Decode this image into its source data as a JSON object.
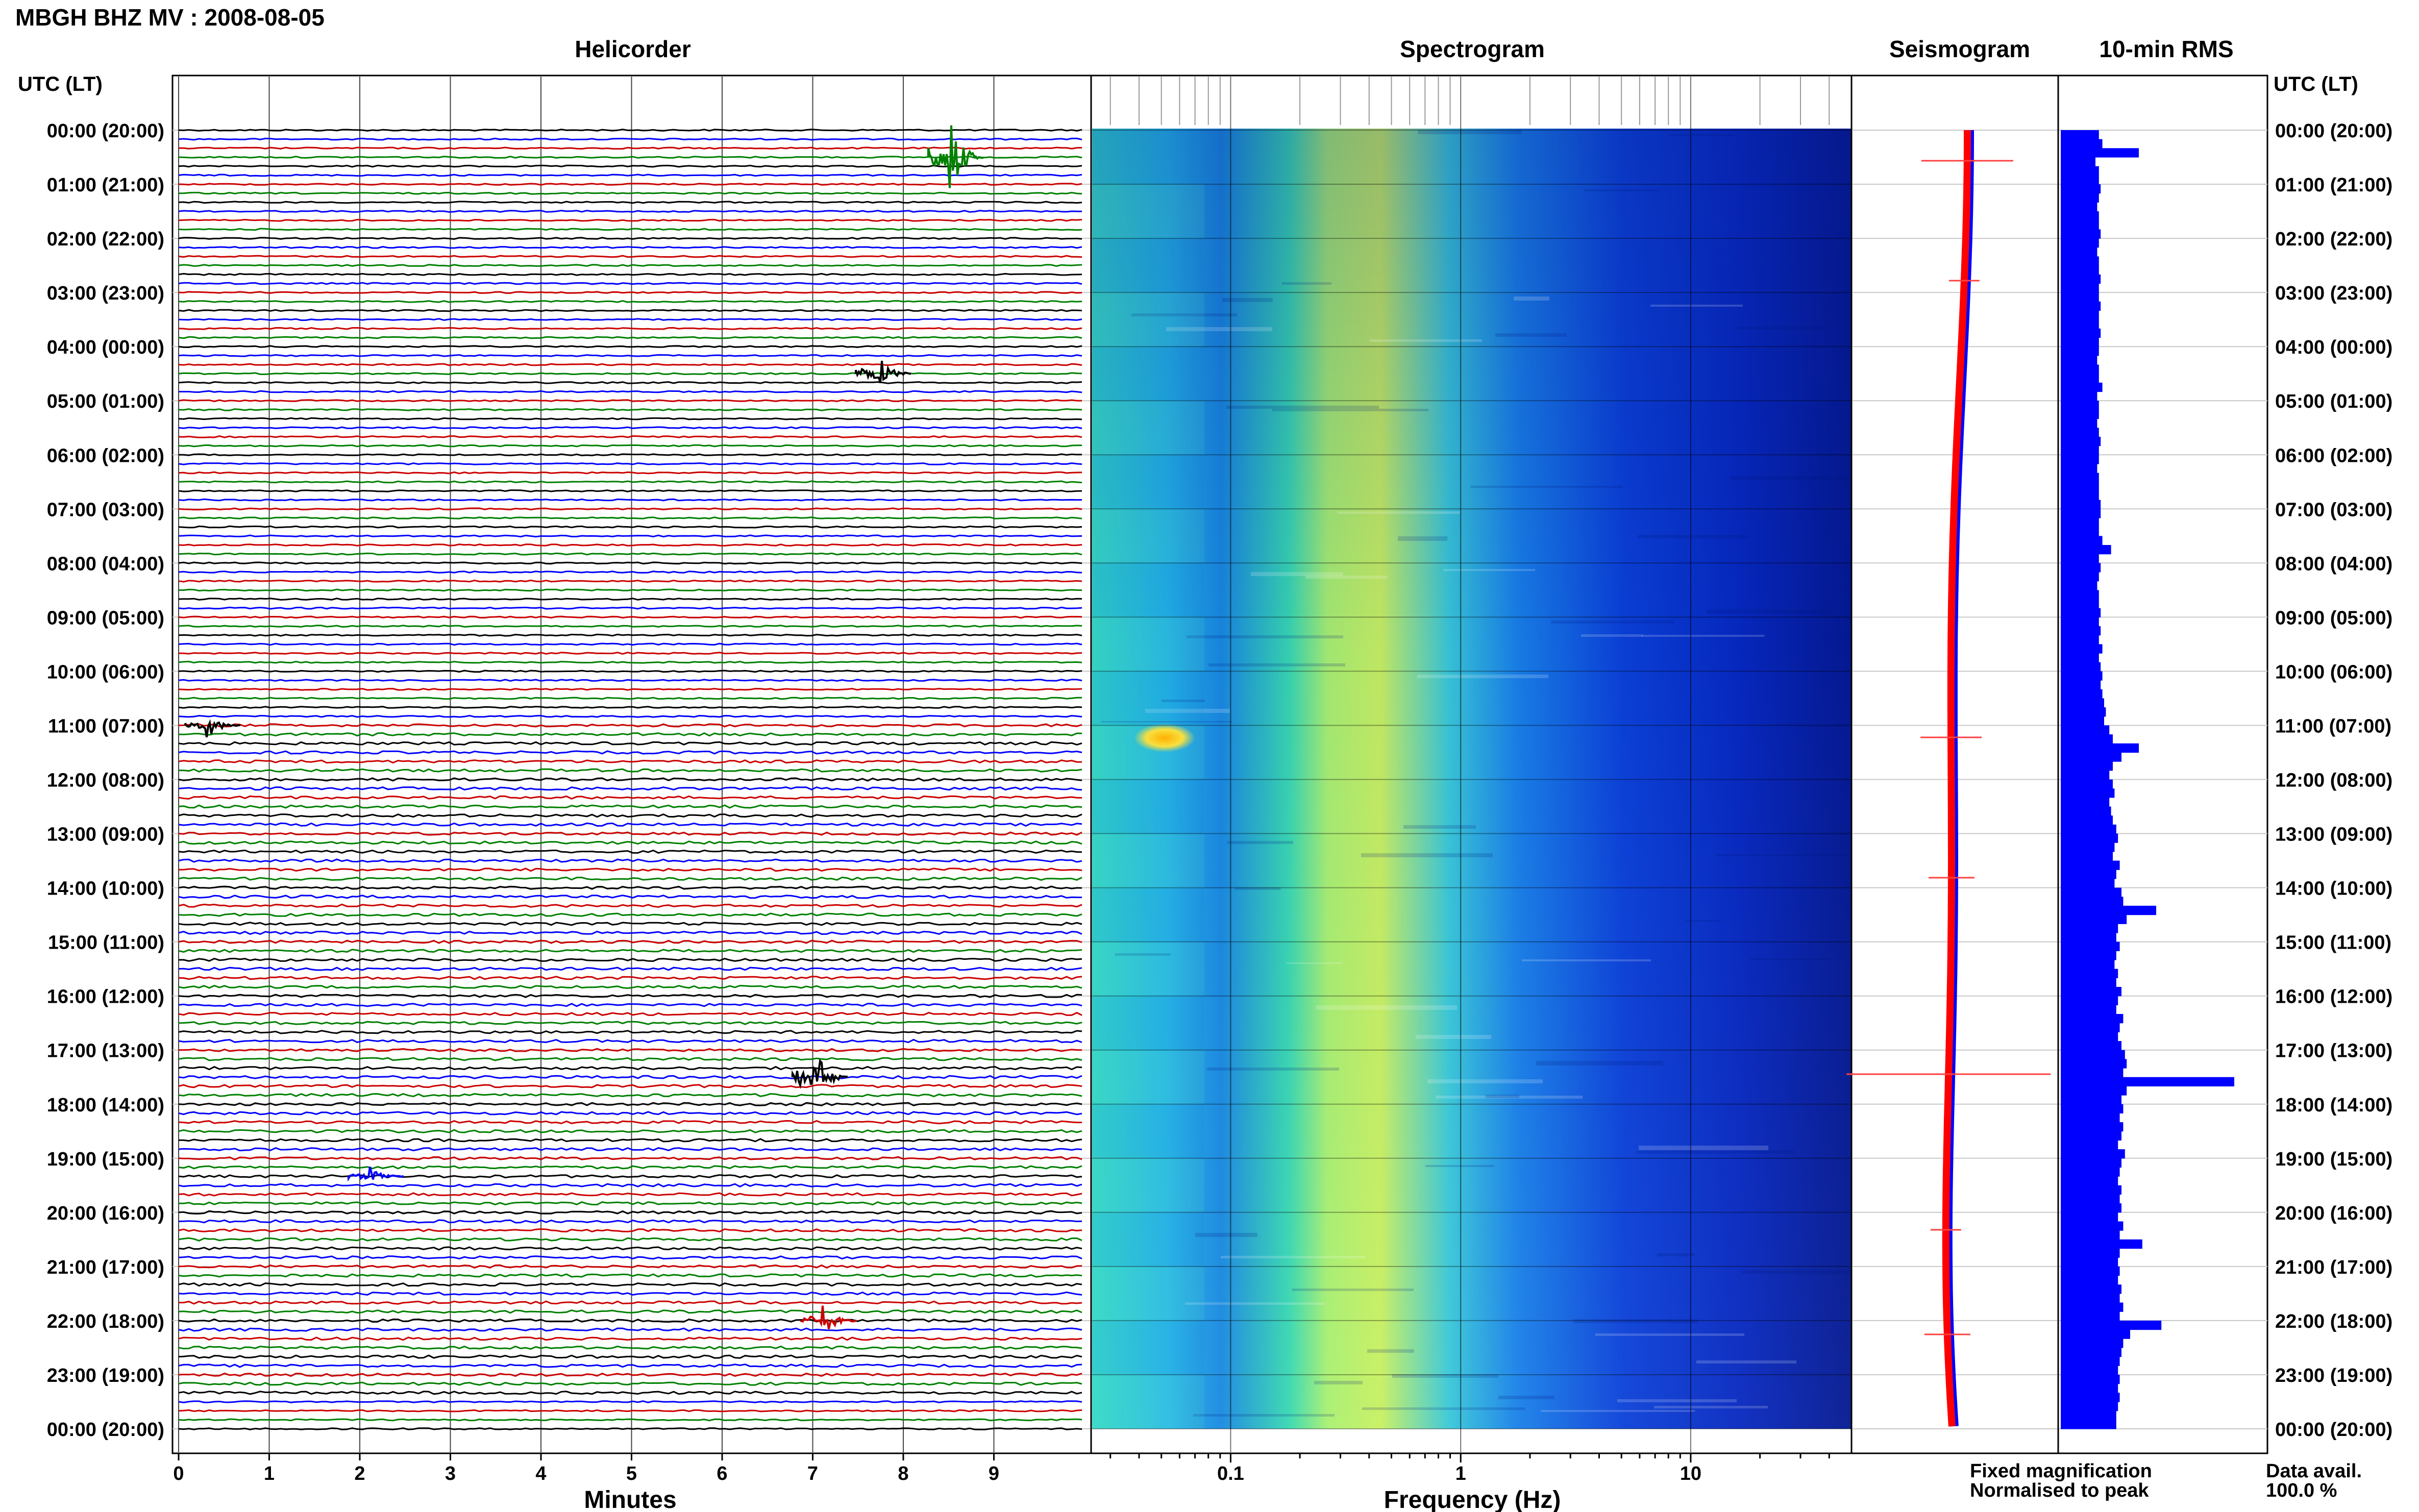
{
  "header": {
    "title": "MBGH BHZ MV : 2008-08-05",
    "left_axis_title": "UTC (LT)",
    "right_axis_title": "UTC (LT)"
  },
  "panels": {
    "helicorder_title": "Helicorder",
    "spectrogram_title": "Spectrogram",
    "seismogram_title": "Seismogram",
    "rms_title": "10-min RMS"
  },
  "legend": {
    "fixed_label": "Fixed magnification",
    "normalised_label": "Normalised to peak",
    "fixed_color": "#0000ff",
    "normalised_color": "#ff0000"
  },
  "availability": {
    "label": "Data avail.",
    "value": "100.0 %"
  },
  "chart_data": [
    {
      "type": "line",
      "name": "helicorder",
      "title": "Helicorder",
      "xlabel": "Minutes",
      "xlim": [
        0,
        10
      ],
      "x_ticks": [
        "0",
        "1",
        "2",
        "3",
        "4",
        "5",
        "6",
        "7",
        "8",
        "9"
      ],
      "row_count": 144,
      "row_interval_minutes": 10,
      "trace_colors": [
        "#000000",
        "#0000ff",
        "#cc0000",
        "#008000"
      ],
      "time_labels": [
        "00:00 (20:00)",
        "01:00 (21:00)",
        "02:00 (22:00)",
        "03:00 (23:00)",
        "04:00 (00:00)",
        "05:00 (01:00)",
        "06:00 (02:00)",
        "07:00 (03:00)",
        "08:00 (04:00)",
        "09:00 (05:00)",
        "10:00 (06:00)",
        "11:00 (07:00)",
        "12:00 (08:00)",
        "13:00 (09:00)",
        "14:00 (10:00)",
        "15:00 (11:00)",
        "16:00 (12:00)",
        "17:00 (13:00)",
        "18:00 (14:00)",
        "19:00 (15:00)",
        "20:00 (16:00)",
        "21:00 (17:00)",
        "22:00 (18:00)",
        "23:00 (19:00)",
        "00:00 (20:00)"
      ],
      "events": [
        {
          "row": 3,
          "minute": 8.5,
          "amp": 7,
          "color": "#008000"
        },
        {
          "row": 27,
          "minute": 7.7,
          "amp": 3,
          "color": "#000000"
        },
        {
          "row": 66,
          "minute": 0.3,
          "amp": 2,
          "color": "#000000"
        },
        {
          "row": 105,
          "minute": 7.0,
          "amp": 5,
          "color": "#000000"
        },
        {
          "row": 116,
          "minute": 2.1,
          "amp": 1.5,
          "color": "#0000ff"
        },
        {
          "row": 132,
          "minute": 7.1,
          "amp": 2.5,
          "color": "#cc0000"
        }
      ]
    },
    {
      "type": "heatmap",
      "name": "spectrogram",
      "title": "Spectrogram",
      "xlabel": "Frequency (Hz)",
      "x_scale": "log",
      "xlim": [
        0.025,
        50
      ],
      "x_ticks": [
        "0.1",
        "1",
        "10"
      ],
      "peak_band_hz": [
        0.2,
        0.6
      ],
      "bright_spots": [
        {
          "hour": 11.1,
          "hz": 0.05
        }
      ]
    },
    {
      "type": "line",
      "name": "seismogram",
      "title": "Seismogram",
      "series": [
        {
          "name": "Fixed magnification",
          "color": "#0000ff"
        },
        {
          "name": "Normalised to peak",
          "color": "#ff0000"
        }
      ]
    },
    {
      "type": "bar",
      "name": "10-min RMS",
      "title": "10-min RMS",
      "orientation": "horizontal",
      "bar_count": 144,
      "values": [
        0.22,
        0.24,
        0.45,
        0.2,
        0.22,
        0.22,
        0.23,
        0.22,
        0.21,
        0.22,
        0.22,
        0.23,
        0.22,
        0.21,
        0.22,
        0.22,
        0.23,
        0.22,
        0.22,
        0.23,
        0.22,
        0.22,
        0.23,
        0.22,
        0.22,
        0.21,
        0.22,
        0.22,
        0.24,
        0.21,
        0.22,
        0.22,
        0.21,
        0.22,
        0.23,
        0.22,
        0.22,
        0.21,
        0.22,
        0.22,
        0.22,
        0.23,
        0.23,
        0.22,
        0.22,
        0.24,
        0.29,
        0.22,
        0.23,
        0.22,
        0.21,
        0.22,
        0.22,
        0.23,
        0.22,
        0.23,
        0.22,
        0.24,
        0.22,
        0.23,
        0.24,
        0.23,
        0.24,
        0.25,
        0.26,
        0.25,
        0.28,
        0.3,
        0.45,
        0.35,
        0.3,
        0.28,
        0.3,
        0.31,
        0.28,
        0.29,
        0.3,
        0.32,
        0.33,
        0.31,
        0.3,
        0.34,
        0.32,
        0.31,
        0.35,
        0.36,
        0.55,
        0.38,
        0.33,
        0.32,
        0.34,
        0.32,
        0.31,
        0.33,
        0.32,
        0.35,
        0.33,
        0.32,
        0.36,
        0.34,
        0.33,
        0.35,
        0.37,
        0.38,
        0.36,
        1.0,
        0.38,
        0.35,
        0.36,
        0.34,
        0.36,
        0.35,
        0.33,
        0.37,
        0.35,
        0.34,
        0.33,
        0.35,
        0.34,
        0.35,
        0.33,
        0.36,
        0.34,
        0.47,
        0.34,
        0.33,
        0.34,
        0.33,
        0.35,
        0.34,
        0.36,
        0.34,
        0.58,
        0.4,
        0.36,
        0.35,
        0.34,
        0.33,
        0.34,
        0.33,
        0.34,
        0.33,
        0.32,
        0.32
      ]
    }
  ]
}
